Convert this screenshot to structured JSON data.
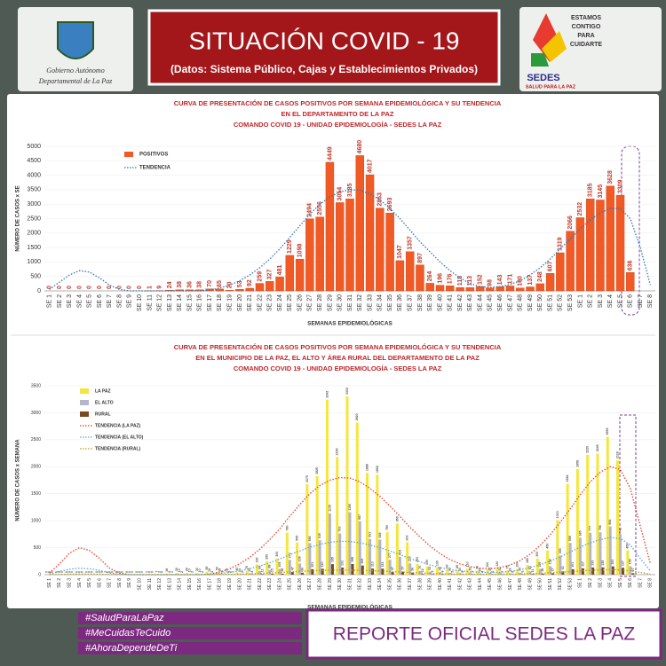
{
  "header": {
    "title": "SITUACIÓN  COVID - 19",
    "subtitle": "(Datos: Sistema Público, Cajas y Establecimientos Privados)",
    "left_logo": [
      "Gobierno Autónomo",
      "Departamental de La Paz"
    ],
    "right_logo": [
      "ESTAMOS",
      "CONTIGO",
      "PARA",
      "CUIDARTE"
    ],
    "right_brand": "SEDES",
    "right_tagline": "SALUD PARA LA PAZ"
  },
  "footer": {
    "hashtags": [
      "#SaludParaLaPaz",
      "#MeCuidasTeCuido",
      "#AhoraDependeDeTi"
    ],
    "report": "REPORTE OFICIAL SEDES LA PAZ"
  },
  "chart_data": [
    {
      "type": "bar",
      "title": [
        "CURVA DE PRESENTACIÓN DE CASOS POSITIVOS POR SEMANA EPIDEMIOLÓGICA Y SU TENDENCIA",
        "EN EL DEPARTAMENTO DE LA PAZ",
        "COMANDO COVID 19 - UNIDAD EPIDEMIOLOGÍA - SEDES LA PAZ"
      ],
      "ylabel": "NÚMERO DE CASOS x SE",
      "xlabel": "SEMANAS EPIDEMIOLÓGICAS",
      "categories": [
        "SE 1",
        "SE 2",
        "SE 3",
        "SE 4",
        "SE 5",
        "SE 6",
        "SE 7",
        "SE 8",
        "SE 9",
        "SE 10",
        "SE 11",
        "SE 12",
        "SE 13",
        "SE 14",
        "SE 15",
        "SE 16",
        "SE 17",
        "SE 18",
        "SE 19",
        "SE 20",
        "SE 21",
        "SE 22",
        "SE 23",
        "SE 24",
        "SE 25",
        "SE 26",
        "SE 27",
        "SE 28",
        "SE 29",
        "SE 30",
        "SE 31",
        "SE 32",
        "SE 33",
        "SE 34",
        "SE 35",
        "SE 36",
        "SE 37",
        "SE 38",
        "SE 39",
        "SE 40",
        "SE 41",
        "SE 42",
        "SE 43",
        "SE 44",
        "SE 45",
        "SE 46",
        "SE 47",
        "SE 48",
        "SE 49",
        "SE 50",
        "SE 51",
        "SE 52",
        "SE 53",
        "SE 1",
        "SE 2",
        "SE 3",
        "SE 4",
        "SE 5",
        "SE 6",
        "SE 7",
        "SE 8"
      ],
      "series": [
        {
          "name": "POSITIVOS",
          "color": "#f15a24",
          "values": [
            0,
            0,
            0,
            0,
            0,
            0,
            0,
            0,
            0,
            0,
            1,
            9,
            24,
            38,
            36,
            38,
            70,
            65,
            20,
            53,
            92,
            259,
            327,
            481,
            1229,
            1098,
            2494,
            2556,
            4449,
            3054,
            3185,
            4680,
            4017,
            2863,
            2693,
            1047,
            1357,
            897,
            264,
            196,
            176,
            115,
            113,
            152,
            98,
            143,
            171,
            100,
            137,
            248,
            607,
            1319,
            2066,
            2532,
            3185,
            3145,
            3628,
            3309,
            636,
            null,
            null
          ]
        },
        {
          "name": "TENDENCIA",
          "type": "line",
          "color": "#2e75b6",
          "values": [
            50,
            300,
            550,
            700,
            650,
            450,
            200,
            50,
            0,
            0,
            0,
            0,
            0,
            0,
            0,
            0,
            20,
            100,
            200,
            350,
            550,
            800,
            1100,
            1450,
            1850,
            2250,
            2650,
            3000,
            3250,
            3420,
            3500,
            3480,
            3350,
            3150,
            2850,
            2500,
            2100,
            1700,
            1350,
            1000,
            700,
            450,
            250,
            150,
            120,
            150,
            220,
            350,
            550,
            800,
            1100,
            1450,
            1800,
            2150,
            2450,
            2700,
            2850,
            2850,
            2500,
            1500,
            200
          ]
        }
      ],
      "ylim": [
        0,
        5000
      ],
      "yticks": [
        0,
        500,
        1000,
        1500,
        2000,
        2500,
        3000,
        3500,
        4000,
        4500,
        5000
      ]
    },
    {
      "type": "bar",
      "title": [
        "CURVA DE PRESENTACIÓN DE CASOS POSITIVOS POR SEMANA EPIDEMIOLÓGICA Y SU TENDENCIA",
        "EN EL  MUNICIPIO DE LA PAZ, EL ALTO Y ÁREA RURAL DEL DEPARTAMENTO DE LA PAZ",
        "COMANDO COVID 19 - UNIDAD EPIDEMIOLOGÍA - SEDES LA PAZ"
      ],
      "ylabel": "NÚMERO DE CASOS x SEMANA",
      "xlabel": "SEMANAS EPIDEMIOLÓGICAS",
      "categories": [
        "SE 1",
        "SE 2",
        "SE 3",
        "SE 4",
        "SE 5",
        "SE 6",
        "SE 7",
        "SE 8",
        "SE 9",
        "SE 10",
        "SE 11",
        "SE 12",
        "SE 13",
        "SE 14",
        "SE 15",
        "SE 16",
        "SE 17",
        "SE 18",
        "SE 19",
        "SE 20",
        "SE 21",
        "SE 22",
        "SE 23",
        "SE 24",
        "SE 25",
        "SE 26",
        "SE 27",
        "SE 28",
        "SE 29",
        "SE 30",
        "SE 31",
        "SE 32",
        "SE 33",
        "SE 34",
        "SE 35",
        "SE 36",
        "SE 37",
        "SE 38",
        "SE 39",
        "SE 40",
        "SE 41",
        "SE 42",
        "SE 43",
        "SE 44",
        "SE 45",
        "SE 46",
        "SE 47",
        "SE 48",
        "SE 49",
        "SE 50",
        "SE 51",
        "SE 52",
        "SE 53",
        "SE 1",
        "SE 2",
        "SE 3",
        "SE 4",
        "SE 5",
        "SE 6",
        "SE 7",
        "SE 8"
      ],
      "series": [
        {
          "name": "LA PAZ",
          "color": "#f5e63c",
          "values": [
            0,
            0,
            0,
            0,
            0,
            0,
            0,
            0,
            0,
            0,
            1,
            7,
            18,
            30,
            28,
            30,
            55,
            50,
            15,
            40,
            70,
            190,
            250,
            300,
            780,
            595,
            1675,
            1825,
            3242,
            2180,
            3302,
            2820,
            1888,
            1854,
            790,
            950,
            600,
            200,
            150,
            130,
            90,
            85,
            110,
            70,
            100,
            120,
            75,
            100,
            180,
            300,
            450,
            1013,
            1684,
            1958,
            2220,
            2245,
            2555,
            2118,
            450,
            null,
            null
          ]
        },
        {
          "name": "EL ALTO",
          "color": "#b4b6c8",
          "values": [
            0,
            0,
            0,
            0,
            0,
            0,
            0,
            0,
            0,
            0,
            0,
            2,
            6,
            10,
            10,
            10,
            19,
            18,
            5,
            14,
            25,
            66,
            88,
            105,
            273,
            208,
            586,
            639,
            1135,
            763,
            1156,
            987,
            661,
            649,
            277,
            333,
            210,
            70,
            53,
            46,
            32,
            30,
            39,
            25,
            35,
            42,
            26,
            35,
            63,
            105,
            158,
            355,
            589,
            685,
            777,
            786,
            894,
            741,
            158,
            null,
            null
          ]
        },
        {
          "name": "RURAL",
          "color": "#7a4a1c",
          "values": [
            0,
            0,
            0,
            0,
            0,
            0,
            0,
            0,
            0,
            0,
            0,
            0,
            1,
            2,
            2,
            2,
            3,
            3,
            1,
            2,
            4,
            11,
            15,
            18,
            47,
            36,
            101,
            110,
            195,
            131,
            198,
            169,
            113,
            111,
            47,
            57,
            36,
            12,
            9,
            8,
            5,
            5,
            7,
            4,
            6,
            7,
            5,
            6,
            11,
            18,
            27,
            61,
            101,
            117,
            133,
            135,
            153,
            127,
            27,
            null,
            null
          ]
        },
        {
          "name": "TENDENCIA (LA PAZ)",
          "type": "line",
          "color": "#e0402a",
          "values": [
            30,
            200,
            400,
            500,
            450,
            300,
            120,
            30,
            0,
            0,
            0,
            0,
            0,
            0,
            0,
            0,
            10,
            50,
            110,
            200,
            320,
            470,
            650,
            850,
            1080,
            1300,
            1500,
            1650,
            1750,
            1800,
            1790,
            1720,
            1600,
            1450,
            1270,
            1080,
            880,
            700,
            530,
            390,
            280,
            200,
            150,
            120,
            110,
            130,
            180,
            260,
            380,
            540,
            740,
            970,
            1220,
            1480,
            1720,
            1900,
            2000,
            1950,
            1600,
            900,
            200
          ]
        },
        {
          "name": "TENDENCIA (EL ALTO)",
          "type": "line",
          "color": "#5aa6d6",
          "values": [
            10,
            60,
            100,
            120,
            110,
            80,
            30,
            10,
            0,
            0,
            0,
            0,
            0,
            0,
            0,
            0,
            5,
            20,
            40,
            70,
            110,
            160,
            220,
            290,
            370,
            440,
            510,
            560,
            600,
            620,
            615,
            590,
            550,
            500,
            440,
            370,
            300,
            240,
            180,
            130,
            95,
            70,
            55,
            45,
            40,
            45,
            60,
            90,
            130,
            185,
            250,
            330,
            420,
            510,
            590,
            650,
            690,
            670,
            550,
            300,
            70
          ]
        },
        {
          "name": "TENDENCIA (RURAL)",
          "type": "line",
          "color": "#b8a020",
          "values": [
            0,
            5,
            10,
            12,
            10,
            8,
            3,
            0,
            0,
            0,
            0,
            0,
            0,
            0,
            0,
            0,
            1,
            3,
            6,
            10,
            15,
            22,
            30,
            40,
            50,
            60,
            70,
            78,
            83,
            85,
            84,
            80,
            74,
            67,
            58,
            49,
            40,
            32,
            24,
            17,
            12,
            9,
            7,
            6,
            6,
            7,
            9,
            13,
            18,
            25,
            34,
            45,
            57,
            69,
            80,
            88,
            92,
            88,
            72,
            40,
            10
          ]
        }
      ],
      "ylim": [
        0,
        3500
      ],
      "yticks": [
        0,
        500,
        1000,
        1500,
        2000,
        2500,
        3000,
        3500
      ]
    }
  ]
}
